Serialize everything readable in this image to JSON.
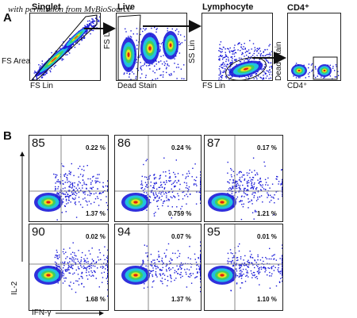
{
  "watermark": "with permission from MyBioSource",
  "panelA": {
    "letter": "A",
    "plots": [
      {
        "title": "Singlet",
        "xlabel": "FS Lin",
        "ylabel": "FS Area"
      },
      {
        "title": "Live",
        "xlabel": "Dead Stain",
        "ylabel": "FS Lin"
      },
      {
        "title": "Lymphocyte",
        "xlabel": "FS Lin",
        "ylabel": "SS Lin"
      },
      {
        "title": "CD4⁺",
        "xlabel": "CD4⁺",
        "ylabel": "Dead Stain"
      }
    ]
  },
  "panelB": {
    "letter": "B",
    "ylabel": "IL-2",
    "xlabel": "IFN-γ",
    "plots": [
      {
        "id": "85",
        "upper": "0.22 %",
        "lower": "1.37 %"
      },
      {
        "id": "86",
        "upper": "0.24 %",
        "lower": "0.759 %"
      },
      {
        "id": "87",
        "upper": "0.17 %",
        "lower": "1.21 %"
      },
      {
        "id": "90",
        "upper": "0.02 %",
        "lower": "1.68 %"
      },
      {
        "id": "94",
        "upper": "0.07 %",
        "lower": "1.37 %"
      },
      {
        "id": "95",
        "upper": "0.01 %",
        "lower": "1.10 %"
      }
    ]
  },
  "colors": {
    "density_low": "#1a1ad8",
    "density_mid": "#22c0e0",
    "density_high": "#e8e020",
    "density_peak": "#e02010"
  }
}
